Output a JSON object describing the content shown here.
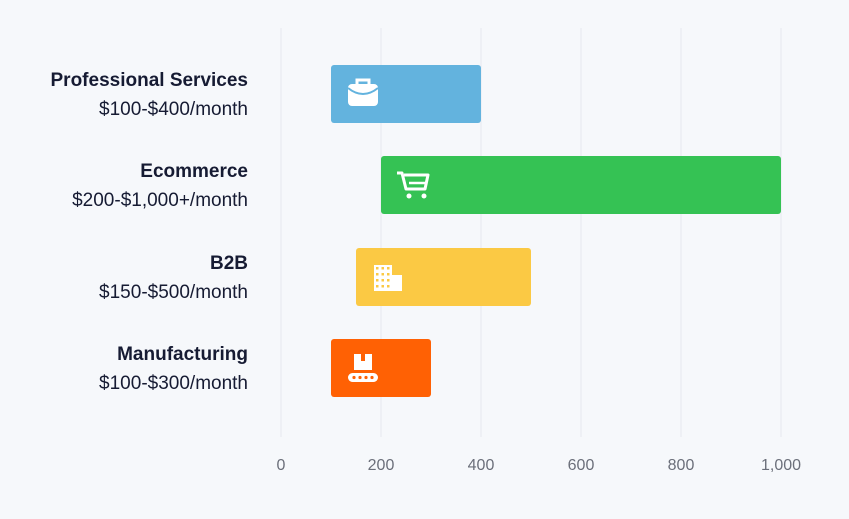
{
  "chart_data": {
    "type": "bar",
    "orientation": "horizontal",
    "range_bars": true,
    "categories": [
      "Professional Services",
      "Ecommerce",
      "B2B",
      "Manufacturing"
    ],
    "sublabels": [
      "$100-$400/month",
      "$200-$1,000+/month",
      "$150-$500/month",
      "$100-$300/month"
    ],
    "ranges": [
      [
        100,
        400
      ],
      [
        200,
        1000
      ],
      [
        150,
        500
      ],
      [
        100,
        300
      ]
    ],
    "colors": [
      "#63b3de",
      "#35c254",
      "#fbc944",
      "#ff6104"
    ],
    "icons": [
      "briefcase-icon",
      "shopping-cart-icon",
      "buildings-icon",
      "conveyor-box-icon"
    ],
    "xlim": [
      0,
      1000
    ],
    "xticks": [
      0,
      200,
      400,
      600,
      800,
      1000
    ],
    "xtick_labels": [
      "0",
      "200",
      "400",
      "600",
      "800",
      "1,000"
    ],
    "grid": "vertical",
    "xlabel": "",
    "ylabel": "",
    "title": ""
  }
}
